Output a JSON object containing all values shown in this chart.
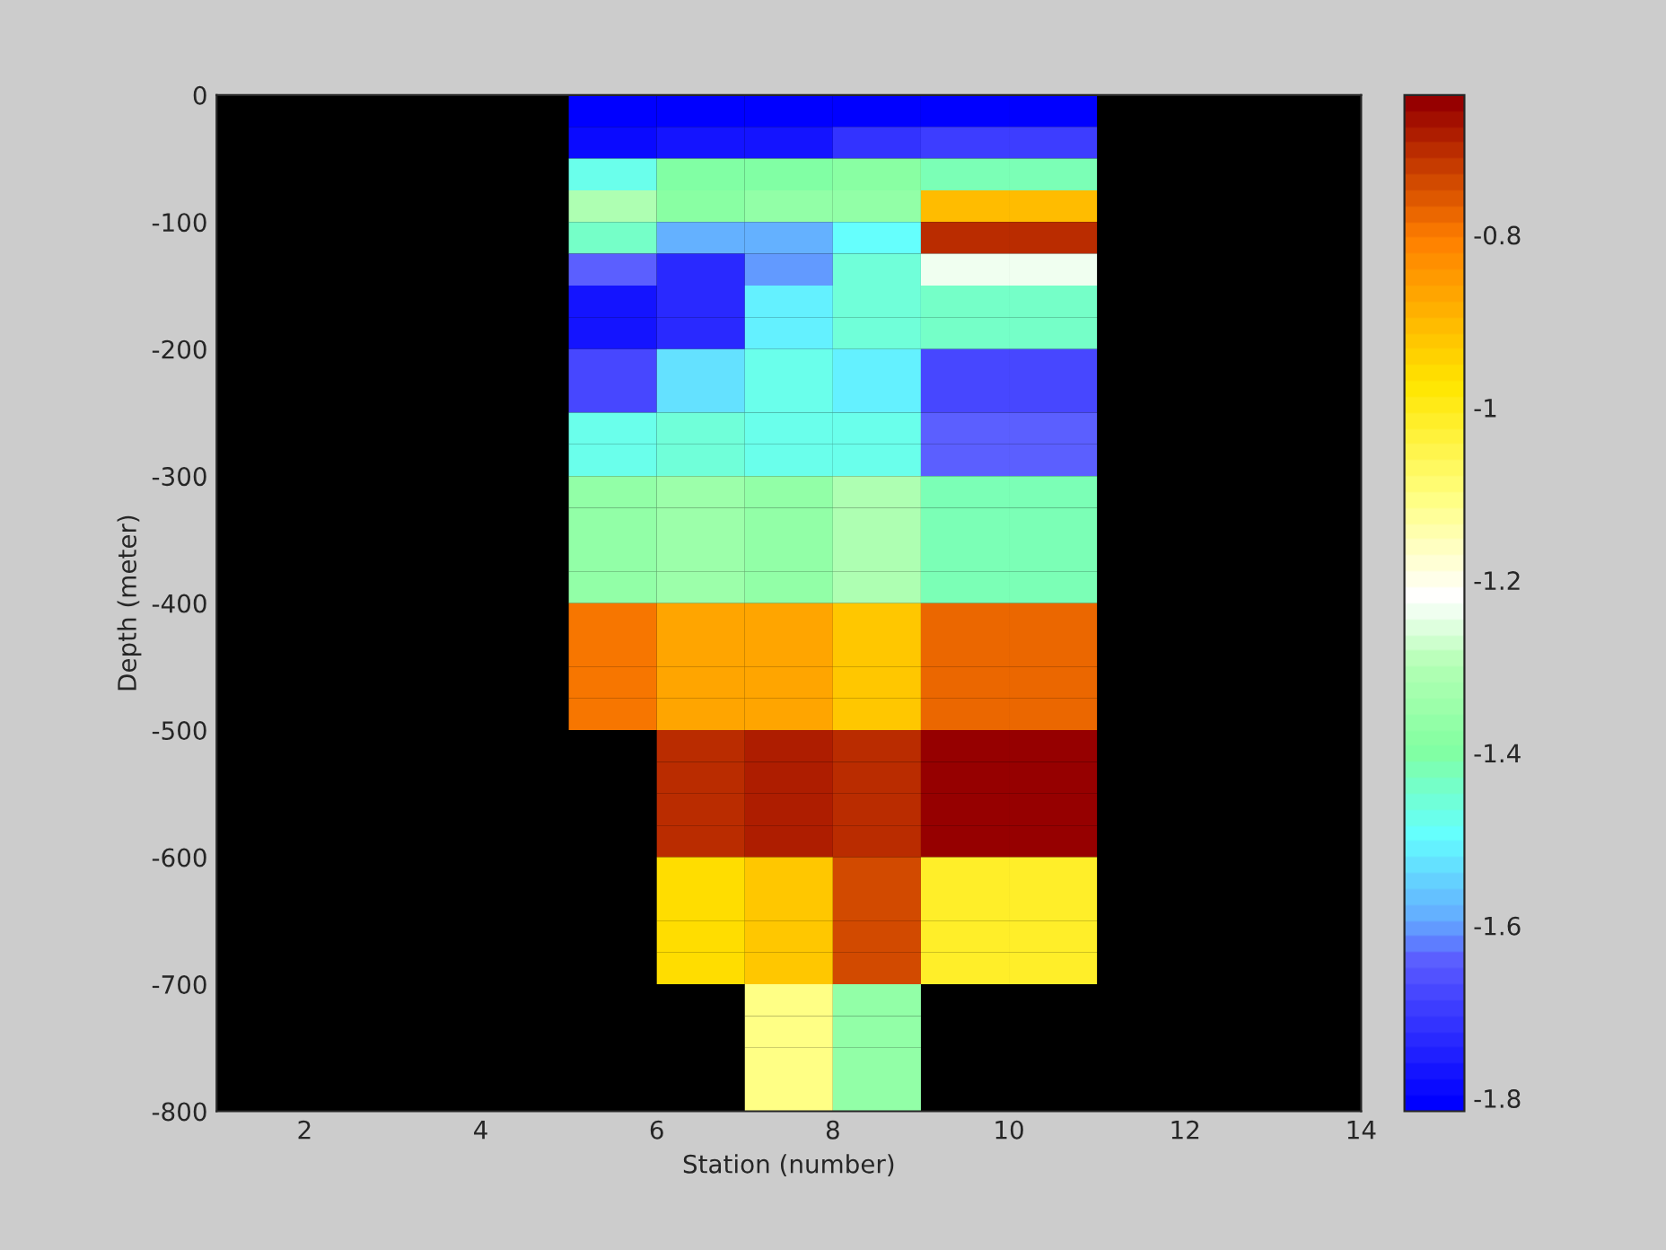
{
  "chart_data": {
    "type": "heatmap",
    "xlabel": "Station (number)",
    "ylabel": "Depth (meter)",
    "cells": [
      [
        null,
        null,
        null,
        null,
        -1.8,
        -1.8,
        -1.8,
        -1.8,
        -1.81,
        -1.81,
        null,
        null,
        null
      ],
      [
        null,
        null,
        null,
        null,
        -1.79,
        -1.77,
        -1.77,
        -1.72,
        -1.69,
        -1.69,
        null,
        null,
        null
      ],
      [
        null,
        null,
        null,
        null,
        -1.48,
        -1.4,
        -1.4,
        -1.38,
        -1.42,
        -1.42,
        null,
        null,
        null
      ],
      [
        null,
        null,
        null,
        null,
        -1.31,
        -1.38,
        -1.36,
        -1.36,
        -0.9,
        -0.9,
        null,
        null,
        null
      ],
      [
        null,
        null,
        null,
        null,
        -1.43,
        -1.59,
        -1.59,
        -1.5,
        -0.71,
        -0.71,
        null,
        null,
        null
      ],
      [
        null,
        null,
        null,
        null,
        -1.64,
        -1.74,
        -1.6,
        -1.46,
        -1.23,
        -1.23,
        null,
        null,
        null
      ],
      [
        null,
        null,
        null,
        null,
        -1.77,
        -1.74,
        -1.51,
        -1.45,
        -1.43,
        -1.43,
        null,
        null,
        null
      ],
      [
        null,
        null,
        null,
        null,
        -1.77,
        -1.74,
        -1.51,
        -1.45,
        -1.43,
        -1.43,
        null,
        null,
        null
      ],
      [
        null,
        null,
        null,
        null,
        -1.67,
        -1.53,
        -1.47,
        -1.51,
        -1.67,
        -1.67,
        null,
        null,
        null
      ],
      [
        null,
        null,
        null,
        null,
        -1.67,
        -1.53,
        -1.47,
        -1.51,
        -1.67,
        -1.67,
        null,
        null,
        null
      ],
      [
        null,
        null,
        null,
        null,
        -1.47,
        -1.45,
        -1.48,
        -1.47,
        -1.64,
        -1.64,
        null,
        null,
        null
      ],
      [
        null,
        null,
        null,
        null,
        -1.47,
        -1.45,
        -1.48,
        -1.47,
        -1.64,
        -1.64,
        null,
        null,
        null
      ],
      [
        null,
        null,
        null,
        null,
        -1.36,
        -1.34,
        -1.36,
        -1.31,
        -1.42,
        -1.42,
        null,
        null,
        null
      ],
      [
        null,
        null,
        null,
        null,
        -1.36,
        -1.34,
        -1.36,
        -1.31,
        -1.42,
        -1.42,
        null,
        null,
        null
      ],
      [
        null,
        null,
        null,
        null,
        -1.36,
        -1.34,
        -1.36,
        -1.31,
        -1.42,
        -1.42,
        null,
        null,
        null
      ],
      [
        null,
        null,
        null,
        null,
        -1.36,
        -1.34,
        -1.36,
        -1.31,
        -1.42,
        -1.42,
        null,
        null,
        null
      ],
      [
        null,
        null,
        null,
        null,
        -0.8,
        -0.87,
        -0.87,
        -0.93,
        -0.77,
        -0.77,
        null,
        null,
        null
      ],
      [
        null,
        null,
        null,
        null,
        -0.8,
        -0.87,
        -0.87,
        -0.93,
        -0.77,
        -0.77,
        null,
        null,
        null
      ],
      [
        null,
        null,
        null,
        null,
        -0.8,
        -0.87,
        -0.87,
        -0.93,
        -0.77,
        -0.77,
        null,
        null,
        null
      ],
      [
        null,
        null,
        null,
        null,
        -0.8,
        -0.87,
        -0.87,
        -0.93,
        -0.77,
        -0.77,
        null,
        null,
        null
      ],
      [
        null,
        null,
        null,
        null,
        null,
        -0.71,
        -0.68,
        -0.71,
        -0.65,
        -0.65,
        null,
        null,
        null
      ],
      [
        null,
        null,
        null,
        null,
        null,
        -0.71,
        -0.68,
        -0.71,
        -0.65,
        -0.65,
        null,
        null,
        null
      ],
      [
        null,
        null,
        null,
        null,
        null,
        -0.71,
        -0.68,
        -0.71,
        -0.65,
        -0.65,
        null,
        null,
        null
      ],
      [
        null,
        null,
        null,
        null,
        null,
        -0.71,
        -0.68,
        -0.71,
        -0.65,
        -0.65,
        null,
        null,
        null
      ],
      [
        null,
        null,
        null,
        null,
        null,
        -0.96,
        -0.92,
        -0.74,
        -1.01,
        -1.01,
        null,
        null,
        null
      ],
      [
        null,
        null,
        null,
        null,
        null,
        -0.96,
        -0.92,
        -0.74,
        -1.01,
        -1.01,
        null,
        null,
        null
      ],
      [
        null,
        null,
        null,
        null,
        null,
        -0.96,
        -0.92,
        -0.74,
        -1.01,
        -1.01,
        null,
        null,
        null
      ],
      [
        null,
        null,
        null,
        null,
        null,
        -0.96,
        -0.92,
        -0.74,
        -1.01,
        -1.01,
        null,
        null,
        null
      ],
      [
        null,
        null,
        null,
        null,
        null,
        null,
        -1.1,
        -1.36,
        null,
        null,
        null,
        null,
        null
      ],
      [
        null,
        null,
        null,
        null,
        null,
        null,
        -1.1,
        -1.36,
        null,
        null,
        null,
        null,
        null
      ],
      [
        null,
        null,
        null,
        null,
        null,
        null,
        -1.1,
        -1.36,
        null,
        null,
        null,
        null,
        null
      ],
      [
        null,
        null,
        null,
        null,
        null,
        null,
        -1.1,
        -1.36,
        null,
        null,
        null,
        null,
        null
      ]
    ],
    "xlim": [
      1,
      14
    ],
    "xticks": [
      2,
      4,
      6,
      8,
      10,
      12,
      14
    ],
    "ylim": [
      -800,
      0
    ],
    "yticks": [
      -800,
      -700,
      -600,
      -500,
      -400,
      -300,
      -200,
      -100,
      0
    ],
    "clim": [
      -1.815,
      -0.638
    ],
    "cticks": [
      -1.8,
      -1.6,
      -1.4,
      -1.2,
      -1,
      -0.8
    ]
  }
}
